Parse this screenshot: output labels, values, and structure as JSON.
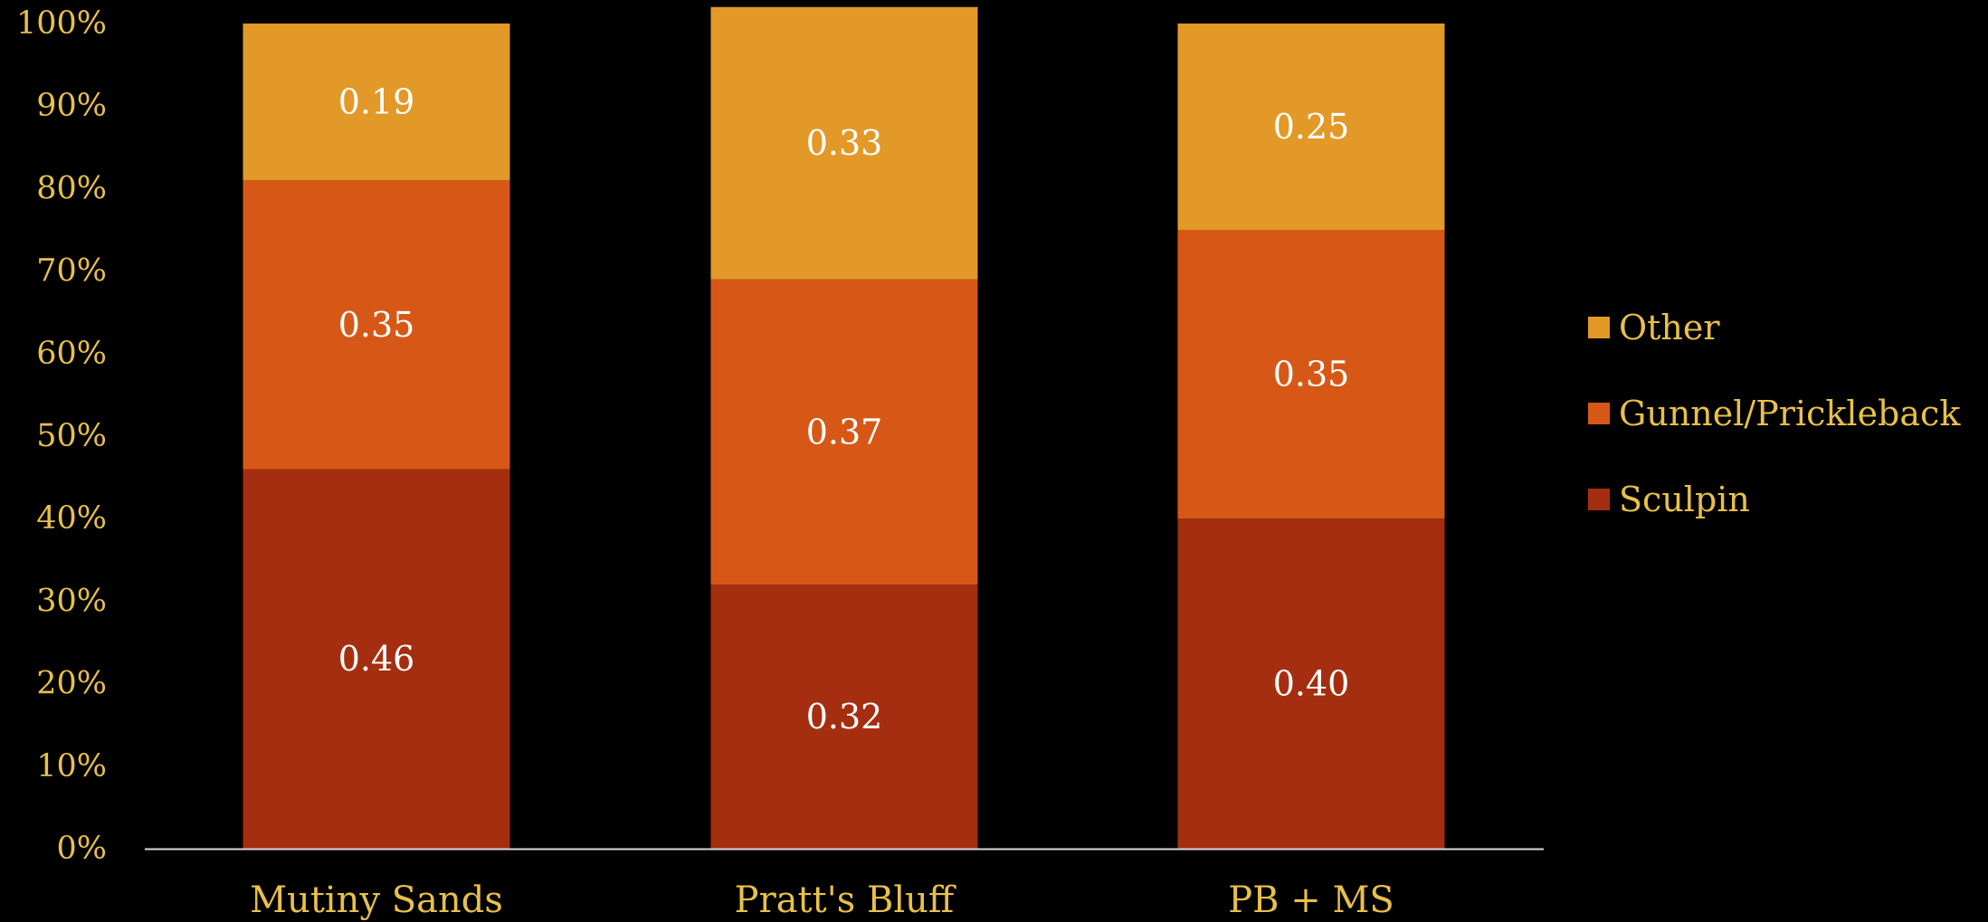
{
  "chart_data": {
    "type": "bar",
    "stacked": true,
    "percent": true,
    "categories": [
      "Mutiny Sands",
      "Pratt's Bluff",
      "PB + MS"
    ],
    "series": [
      {
        "name": "Sculpin",
        "values": [
          0.46,
          0.32,
          0.4
        ],
        "labels": [
          "0.46",
          "0.32",
          "0.40"
        ],
        "color": "#A52E10"
      },
      {
        "name": "Gunnel/Prickleback",
        "values": [
          0.35,
          0.37,
          0.35
        ],
        "labels": [
          "0.35",
          "0.37",
          "0.35"
        ],
        "color": "#D75816"
      },
      {
        "name": "Other",
        "values": [
          0.19,
          0.33,
          0.25
        ],
        "labels": [
          "0.19",
          "0.33",
          "0.25"
        ],
        "color": "#E39927"
      }
    ],
    "yticks": [
      "0%",
      "10%",
      "20%",
      "30%",
      "40%",
      "50%",
      "60%",
      "70%",
      "80%",
      "90%",
      "100%"
    ],
    "ylim": [
      0,
      1
    ],
    "title": "",
    "xlabel": "",
    "ylabel": "",
    "grid": false,
    "legend": "right",
    "legend_order": [
      "Other",
      "Gunnel/Prickleback",
      "Sculpin"
    ]
  },
  "colors": {
    "background": "#000000",
    "axis_text": "#E8C04A",
    "data_label": "#FFFFFF",
    "axis_line": "#D9D9D9"
  }
}
